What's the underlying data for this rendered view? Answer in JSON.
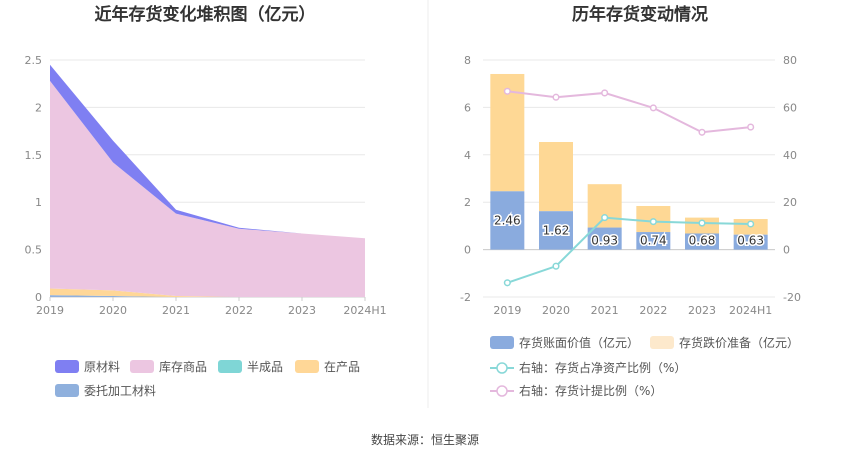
{
  "footer": {
    "source": "数据来源：恒生聚源"
  },
  "colors": {
    "raw_material": "#7f7ff2",
    "finished_goods": "#ecc6e1",
    "semi_finished": "#7fd6d6",
    "wip": "#ffd797",
    "consigned": "#8fb0dd",
    "bar_book": "#8aabde",
    "bar_provision": "#fed895",
    "line_ratio": "#88d8d8",
    "line_provision": "#e4b8dd"
  },
  "chart_data": [
    {
      "type": "area",
      "title": "近年存货变化堆积图（亿元）",
      "x": [
        "2019",
        "2020",
        "2021",
        "2022",
        "2023",
        "2024H1"
      ],
      "ylim": [
        0,
        2.5
      ],
      "yticks": [
        "0",
        "0.5",
        "1",
        "1.5",
        "2",
        "2.5"
      ],
      "grid": true,
      "legend_position": "bottom",
      "series": [
        {
          "name": "委托加工材料",
          "values": [
            0.02,
            0.01,
            0.0,
            0.0,
            0.0,
            0.0
          ]
        },
        {
          "name": "半成品",
          "values": [
            0.0,
            0.0,
            0.0,
            0.0,
            0.0,
            0.0
          ]
        },
        {
          "name": "在产品",
          "values": [
            0.07,
            0.06,
            0.01,
            0.0,
            0.0,
            0.0
          ]
        },
        {
          "name": "库存商品",
          "values": [
            2.19,
            1.35,
            0.87,
            0.72,
            0.67,
            0.62
          ]
        },
        {
          "name": "原材料",
          "values": [
            0.17,
            0.23,
            0.04,
            0.01,
            0.0,
            0.0
          ]
        }
      ]
    },
    {
      "type": "bar",
      "title": "历年存货变动情况",
      "categories": [
        "2019",
        "2020",
        "2021",
        "2022",
        "2023",
        "2024H1"
      ],
      "ylim": [
        -2,
        8
      ],
      "yticks": [
        "-2",
        "0",
        "2",
        "4",
        "6",
        "8"
      ],
      "y2lim": [
        -20,
        80
      ],
      "y2ticks": [
        "-20",
        "0",
        "20",
        "40",
        "60",
        "80"
      ],
      "grid": true,
      "legend_position": "bottom",
      "series": [
        {
          "name": "存货账面价值（亿元）",
          "kind": "bar",
          "values": [
            2.46,
            1.62,
            0.93,
            0.74,
            0.68,
            0.63
          ],
          "labels": [
            "2.46",
            "1.62",
            "0.93",
            "0.74",
            "0.68",
            "0.63"
          ]
        },
        {
          "name": "存货跌价准备（亿元）",
          "kind": "bar",
          "values": [
            4.95,
            2.92,
            1.83,
            1.1,
            0.67,
            0.66
          ]
        },
        {
          "name": "右轴：存货占净资产比例（%）",
          "kind": "line",
          "axis": "right",
          "values": [
            -14,
            -7,
            13.5,
            11.8,
            11.2,
            10.8
          ]
        },
        {
          "name": "右轴：存货计提比例（%）",
          "kind": "line",
          "axis": "right",
          "values": [
            66.8,
            64.3,
            66.1,
            59.8,
            49.5,
            51.7
          ]
        }
      ]
    }
  ]
}
